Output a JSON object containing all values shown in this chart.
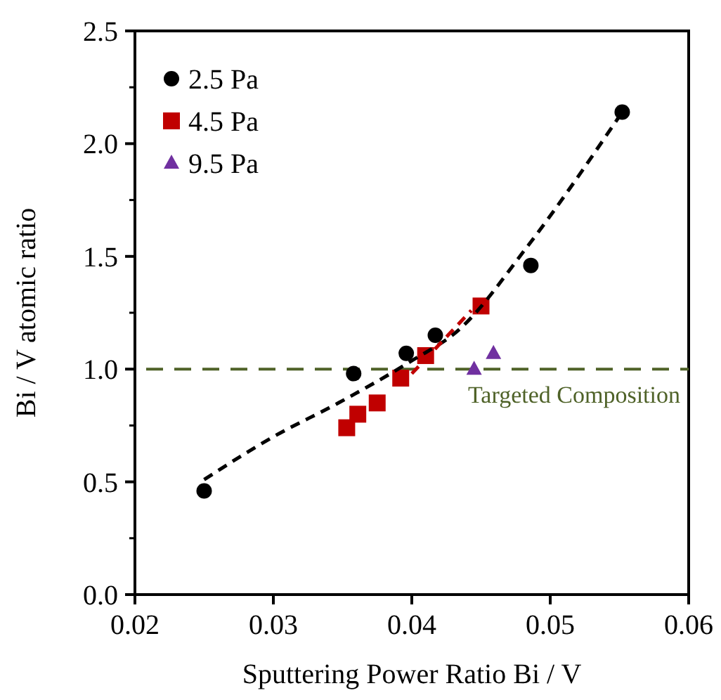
{
  "chart_data": {
    "type": "scatter",
    "xlabel": "Sputtering Power Ratio Bi / V",
    "ylabel": "Bi / V atomic ratio",
    "xlim": [
      0.02,
      0.06
    ],
    "xticks": [
      {
        "value": 0.02,
        "label": "0.02"
      },
      {
        "value": 0.03,
        "label": "0.03"
      },
      {
        "value": 0.04,
        "label": "0.04"
      },
      {
        "value": 0.05,
        "label": "0.05"
      },
      {
        "value": 0.06,
        "label": "0.06"
      }
    ],
    "ylim": [
      0,
      2.5
    ],
    "yticks": [
      {
        "value": 0,
        "label": "0.0"
      },
      {
        "value": 0.5,
        "label": "0.5"
      },
      {
        "value": 1,
        "label": "1.0"
      },
      {
        "value": 1.5,
        "label": "1.5"
      },
      {
        "value": 2,
        "label": "2.0"
      },
      {
        "value": 2.5,
        "label": "2.5"
      }
    ],
    "legend": "top left",
    "grid": false,
    "ref_lines": [
      {
        "axis": "y",
        "value": 1,
        "label": "Targeted Composition",
        "color": "#4f6228",
        "line_style": "dashed"
      }
    ],
    "series": [
      {
        "name": "2.5 Pa",
        "marker": "circle",
        "color": "#000000",
        "x": [
          0.025,
          0.0358,
          0.0396,
          0.0417,
          0.0486,
          0.0552
        ],
        "values": [
          0.46,
          0.98,
          1.07,
          1.15,
          1.46,
          2.14
        ]
      },
      {
        "name": "4.5 Pa",
        "marker": "square",
        "color": "#c00000",
        "x": [
          0.0353,
          0.0361,
          0.0375,
          0.0392,
          0.041,
          0.045
        ],
        "values": [
          0.74,
          0.8,
          0.85,
          0.96,
          1.06,
          1.28
        ]
      },
      {
        "name": "9.5 Pa",
        "marker": "triangle",
        "color": "#7030a0",
        "x": [
          0.0445,
          0.0459
        ],
        "values": [
          1.0,
          1.07
        ]
      },
      {
        "type": "line",
        "marker": "none",
        "line_style": "dashed",
        "color": "#000000",
        "x": [
          0.025,
          0.03,
          0.0347,
          0.0398,
          0.0435,
          0.0483,
          0.0552
        ],
        "values": [
          0.51,
          0.7,
          0.85,
          1.03,
          1.18,
          1.54,
          2.14
        ]
      },
      {
        "type": "line",
        "marker": "none",
        "line_style": "dashed",
        "color": "#c00000",
        "x": [
          0.04,
          0.0443
        ],
        "values": [
          0.98,
          1.26
        ]
      }
    ]
  }
}
